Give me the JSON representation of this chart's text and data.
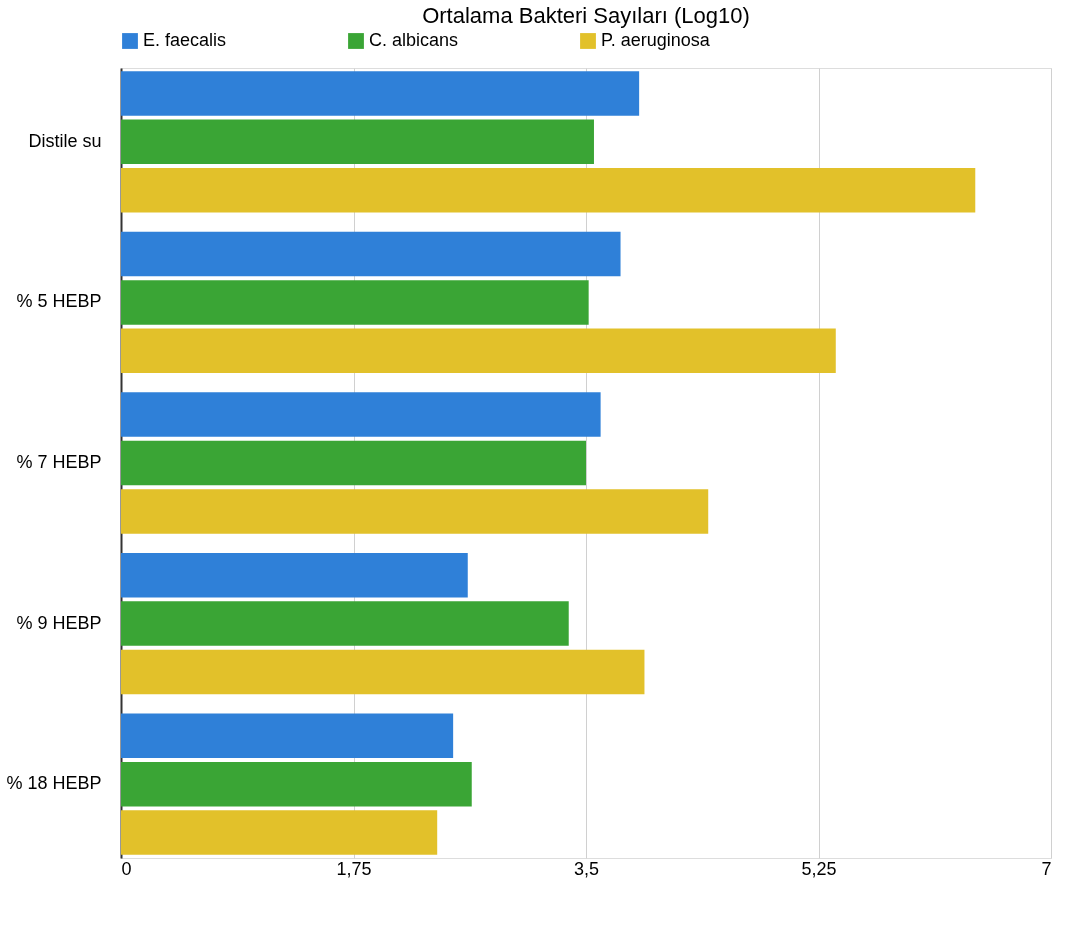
{
  "chart_data": {
    "type": "bar",
    "orientation": "horizontal",
    "title": "Ortalama Bakteri Sayıları (Log10)",
    "categories": [
      "Distile su",
      "% 5 HEBP",
      "% 7 HEBP",
      "% 9 HEBP",
      "% 18 HEBP"
    ],
    "series": [
      {
        "name": "E. faecalis",
        "color": "#2f80d8",
        "values": [
          3.9,
          3.76,
          3.61,
          2.61,
          2.5
        ]
      },
      {
        "name": "C. albicans",
        "color": "#3aa535",
        "values": [
          3.56,
          3.52,
          3.5,
          3.37,
          2.64
        ]
      },
      {
        "name": "P. aeruginosa",
        "color": "#e2c12a",
        "values": [
          6.43,
          5.38,
          4.42,
          3.94,
          2.38
        ]
      }
    ],
    "xlim": [
      0,
      7
    ],
    "xticks": [
      0,
      {
        "value": 1.75,
        "label": "1,75"
      },
      {
        "value": 3.5,
        "label": "3,5"
      },
      {
        "value": 5.25,
        "label": "5,25"
      },
      7
    ],
    "grid": "x",
    "legend": "top"
  }
}
